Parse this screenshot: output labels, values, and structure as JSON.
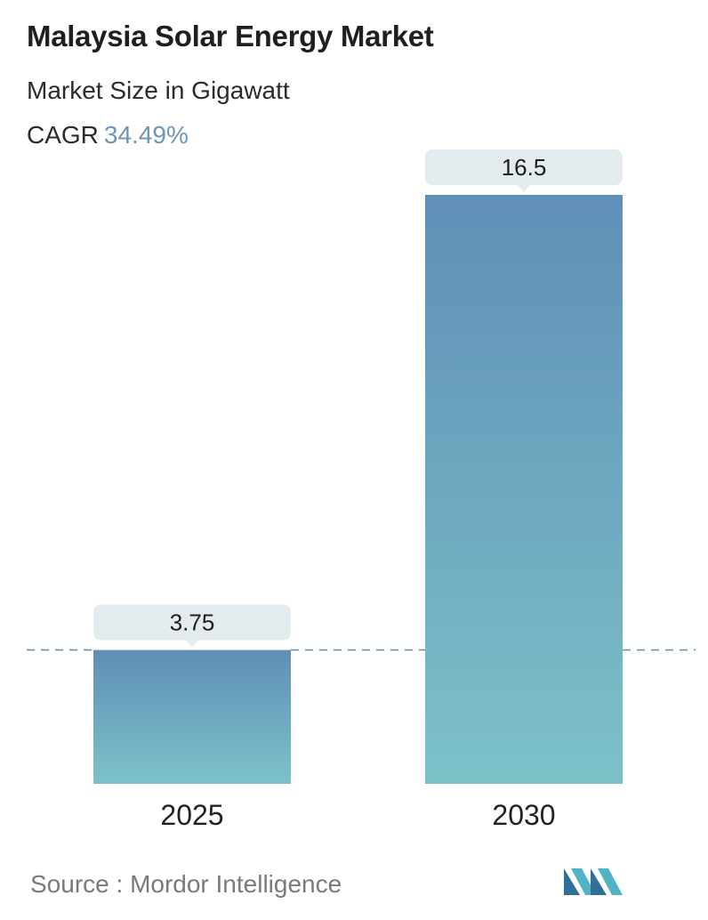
{
  "header": {
    "title": "Malaysia Solar Energy Market",
    "subtitle": "Market Size in Gigawatt",
    "cagr_label": "CAGR",
    "cagr_value": "34.49%"
  },
  "chart_data": {
    "type": "bar",
    "categories": [
      "2025",
      "2030"
    ],
    "values": [
      3.75,
      16.5
    ],
    "value_labels": [
      "3.75",
      "16.5"
    ],
    "ylim": [
      0,
      16.5
    ],
    "grid": false,
    "reference_line_at": 3.75,
    "colors": {
      "bar_top": "#5f8fb7",
      "bar_bottom": "#7cc1c8",
      "label_bg": "#e3ebee",
      "reference_line": "#5b8fb0"
    }
  },
  "footer": {
    "source_label": "Source :",
    "source_name": "Mordor Intelligence",
    "logo_icon": "mordor-intelligence-logo-icon"
  }
}
